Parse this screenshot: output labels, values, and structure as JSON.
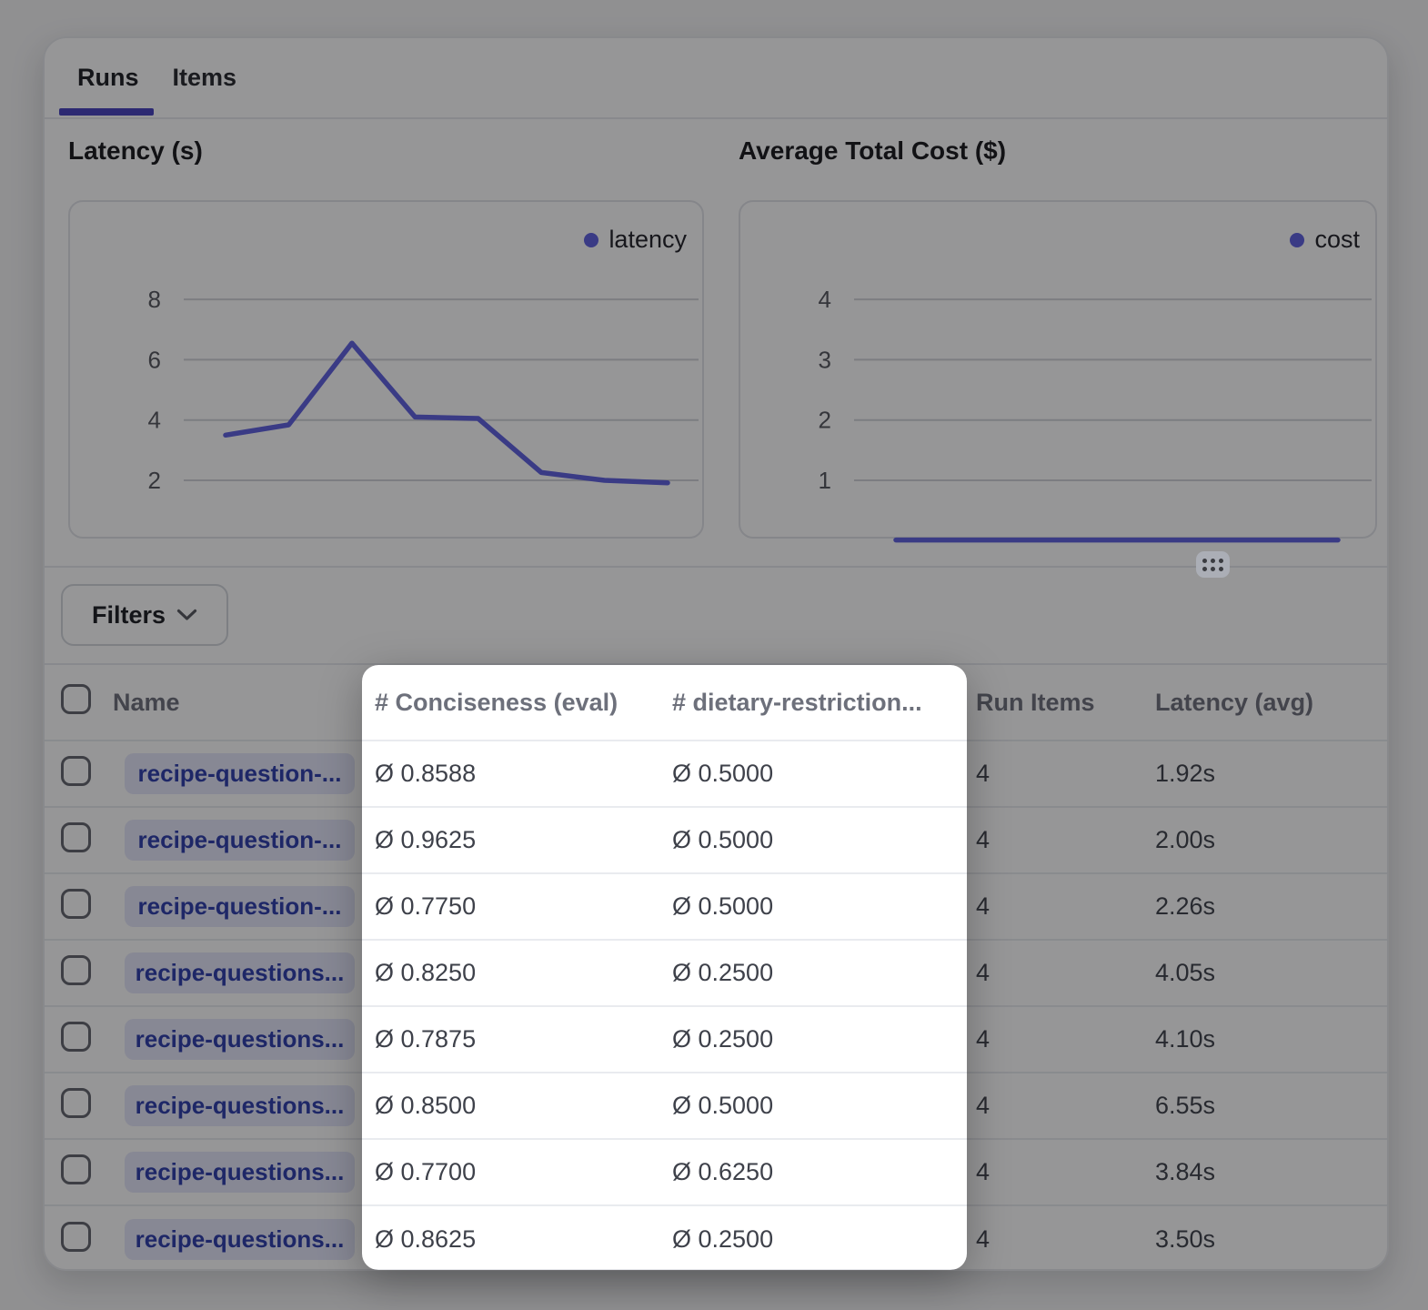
{
  "tabs": [
    {
      "label": "Runs",
      "active": true
    },
    {
      "label": "Items",
      "active": false
    }
  ],
  "chart_data": [
    {
      "type": "line",
      "title": "Latency (s)",
      "legend": "latency",
      "yticks": [
        2,
        4,
        6,
        8
      ],
      "values": [
        3.5,
        3.84,
        6.55,
        4.1,
        4.05,
        2.26,
        2.0,
        1.92
      ],
      "grid": true,
      "legend_position": "top-right",
      "color": "#5d5fe0"
    },
    {
      "type": "line",
      "title": "Average Total Cost ($)",
      "legend": "cost",
      "yticks": [
        1,
        2,
        3,
        4
      ],
      "values": [
        0.01,
        0.01,
        0.01,
        0.01,
        0.01,
        0.01,
        0.01,
        0.01
      ],
      "grid": true,
      "legend_position": "top-right",
      "color": "#5d5fe0"
    }
  ],
  "filters": {
    "label": "Filters",
    "chevron_icon": "chevron-down"
  },
  "table": {
    "columns": [
      "Name",
      "# Conciseness (eval)",
      "# dietary-restriction...",
      "Run Items",
      "Latency (avg)"
    ],
    "rows": [
      {
        "name": "recipe-question-...",
        "conciseness": "Ø 0.8588",
        "dietary": "Ø 0.5000",
        "run_items": "4",
        "latency": "1.92s"
      },
      {
        "name": "recipe-question-...",
        "conciseness": "Ø 0.9625",
        "dietary": "Ø 0.5000",
        "run_items": "4",
        "latency": "2.00s"
      },
      {
        "name": "recipe-question-...",
        "conciseness": "Ø 0.7750",
        "dietary": "Ø 0.5000",
        "run_items": "4",
        "latency": "2.26s"
      },
      {
        "name": "recipe-questions...",
        "conciseness": "Ø 0.8250",
        "dietary": "Ø 0.2500",
        "run_items": "4",
        "latency": "4.05s"
      },
      {
        "name": "recipe-questions...",
        "conciseness": "Ø 0.7875",
        "dietary": "Ø 0.2500",
        "run_items": "4",
        "latency": "4.10s"
      },
      {
        "name": "recipe-questions...",
        "conciseness": "Ø 0.8500",
        "dietary": "Ø 0.5000",
        "run_items": "4",
        "latency": "6.55s"
      },
      {
        "name": "recipe-questions...",
        "conciseness": "Ø 0.7700",
        "dietary": "Ø 0.6250",
        "run_items": "4",
        "latency": "3.84s"
      },
      {
        "name": "recipe-questions...",
        "conciseness": "Ø 0.8625",
        "dietary": "Ø 0.2500",
        "run_items": "4",
        "latency": "3.50s"
      }
    ]
  },
  "spotlight": {
    "highlighted_columns": [
      "# Conciseness (eval)",
      "# dietary-restriction..."
    ]
  },
  "icons": {
    "drag_handle": "grid-dots",
    "filters_button": "chevron-down",
    "average_prefix": "Ø"
  },
  "colors": {
    "accent_underline": "#4540bf",
    "chart_line": "#5d5fe0",
    "grid_line": "#d2d3d9",
    "tick_text": "#55565e",
    "badge_bg": "#e4e6fa",
    "badge_text": "#2c3cab",
    "overlay": "rgba(12,12,15,0.43)"
  }
}
